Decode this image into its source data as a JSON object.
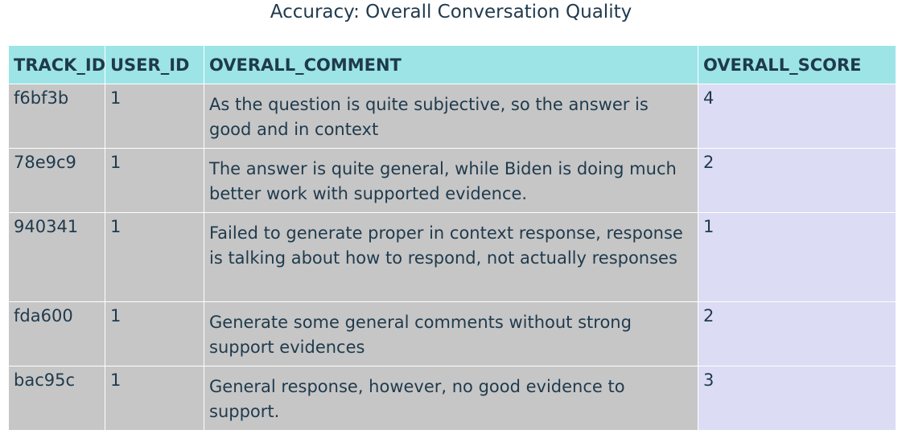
{
  "chart_data": {
    "type": "table",
    "title": "Accuracy: Overall Conversation Quality",
    "columns": [
      "TRACK_ID",
      "USER_ID",
      "OVERALL_COMMENT",
      "OVERALL_SCORE"
    ],
    "rows": [
      {
        "track_id": "f6bf3b",
        "user_id": "1",
        "overall_comment": "As the question is quite subjective, so the answer is good and in context",
        "overall_score": "4"
      },
      {
        "track_id": "78e9c9",
        "user_id": "1",
        "overall_comment": "The answer is quite general, while Biden is doing much better work with supported evidence.",
        "overall_score": "2"
      },
      {
        "track_id": "940341",
        "user_id": "1",
        "overall_comment": "Failed to generate proper in context response, response is talking about how to respond, not actually responses",
        "overall_score": "1"
      },
      {
        "track_id": "fda600",
        "user_id": "1",
        "overall_comment": "Generate some general comments without strong support evidences",
        "overall_score": "2"
      },
      {
        "track_id": "bac95c",
        "user_id": "1",
        "overall_comment": "General response, however, no good evidence to support.",
        "overall_score": "3"
      }
    ]
  },
  "colors": {
    "header_bg": "#9de4e7",
    "cell_bg": "#c6c6c6",
    "score_bg": "#dcdcf4",
    "text": "#1f3a4d"
  }
}
